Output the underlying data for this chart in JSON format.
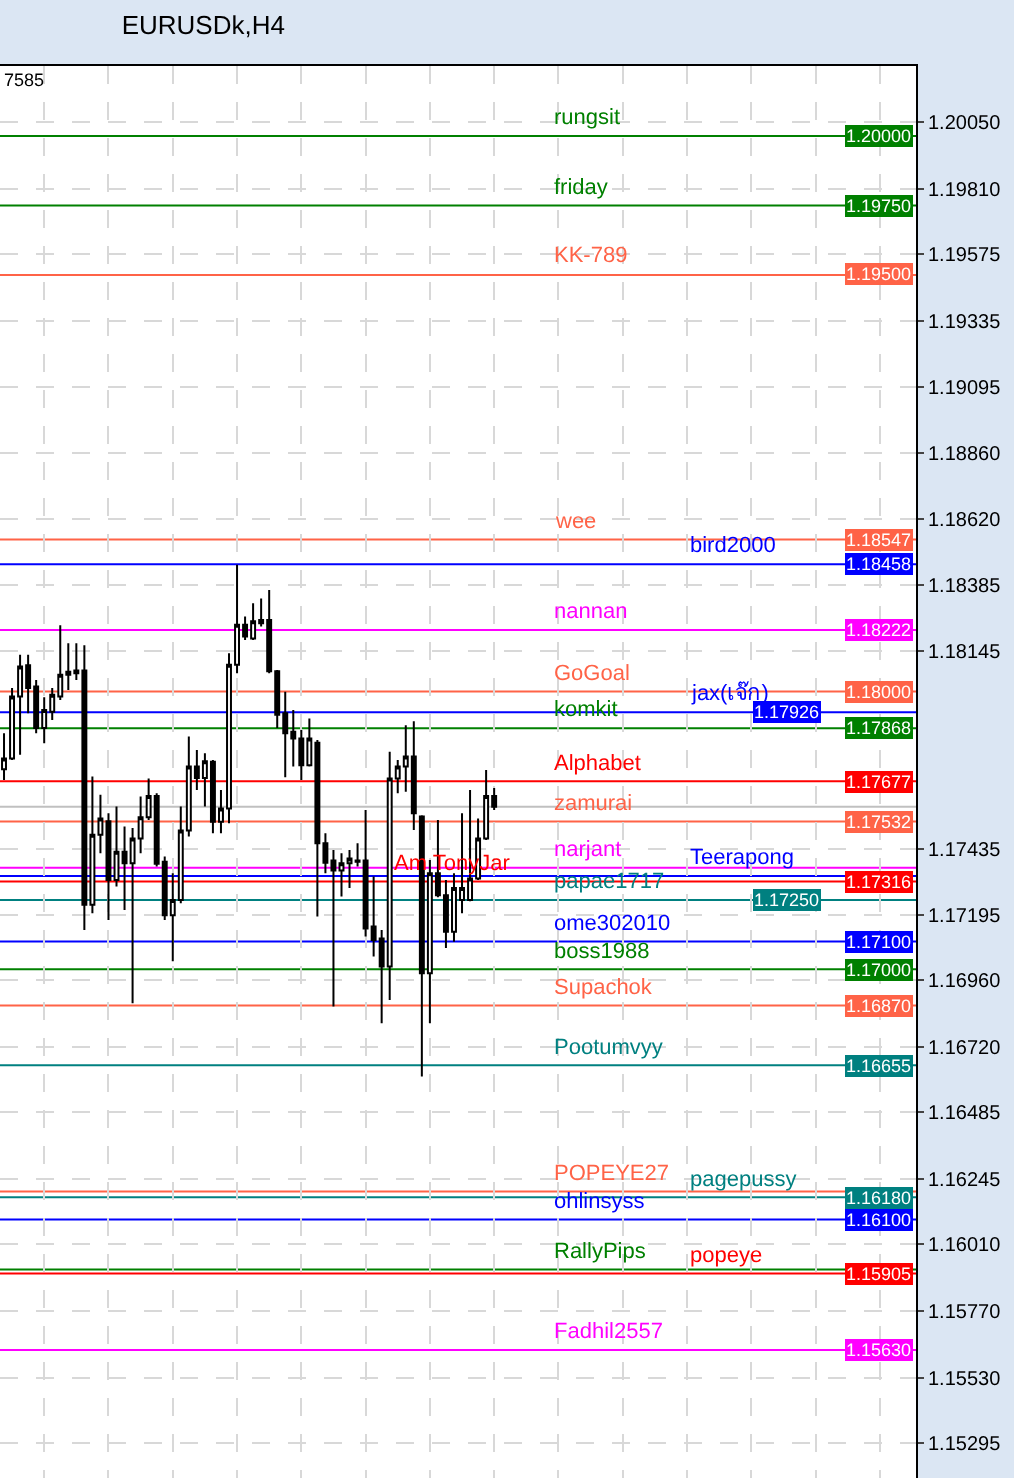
{
  "chart_data": {
    "type": "candlestick",
    "title": "EURUSDk,H4",
    "color": "#000000",
    "categories": [
      null,
      null,
      null,
      null,
      null,
      null,
      null,
      null,
      null,
      null,
      null,
      null,
      null,
      null,
      null,
      null,
      null,
      null,
      null,
      null,
      null,
      null,
      null,
      null,
      null,
      null,
      null,
      null,
      null,
      null,
      null,
      null,
      null,
      null,
      null,
      null,
      null,
      null,
      null,
      null,
      null,
      null,
      null,
      null,
      null,
      null,
      null,
      null,
      null,
      null,
      null,
      null,
      null,
      null,
      null,
      null,
      null,
      null,
      null,
      null,
      null,
      null,
      null,
      null,
      null,
      null,
      null,
      null,
      null,
      null,
      null,
      null,
      null,
      null,
      null,
      null,
      null,
      null,
      null,
      null,
      null,
      null,
      null,
      null,
      null,
      null,
      null,
      null,
      null,
      null,
      null,
      null,
      null,
      null,
      null,
      null,
      null,
      null,
      null,
      null,
      null,
      null,
      null,
      null,
      null,
      null,
      null,
      null,
      null,
      null,
      null,
      null,
      null,
      null
    ],
    "ohlc": [
      [
        1.1772,
        1.1785,
        1.17682,
        1.17759
      ],
      [
        1.17759,
        1.18013,
        1.17754,
        1.17982
      ],
      [
        1.17982,
        1.18133,
        1.17773,
        1.1809
      ],
      [
        1.18095,
        1.18133,
        1.17922,
        1.18013
      ],
      [
        1.18018,
        1.18042,
        1.1785,
        1.17869
      ],
      [
        1.17869,
        1.1798,
        1.17814,
        1.17934
      ],
      [
        1.17927,
        1.18013,
        1.17898,
        1.17989
      ],
      [
        1.17982,
        1.18239,
        1.1797,
        1.18061
      ],
      [
        1.18061,
        1.18174,
        1.18006,
        1.18071
      ],
      [
        1.18066,
        1.18174,
        1.18042,
        1.18076
      ],
      [
        1.18076,
        1.18167,
        1.17142,
        1.17233
      ],
      [
        1.17233,
        1.17694,
        1.17202,
        1.17485
      ],
      [
        1.17485,
        1.17629,
        1.17418,
        1.17543
      ],
      [
        1.17533,
        1.17562,
        1.17178,
        1.17322
      ],
      [
        1.17322,
        1.17586,
        1.17298,
        1.17423
      ],
      [
        1.17423,
        1.17514,
        1.17214,
        1.17382
      ],
      [
        1.17382,
        1.17509,
        1.16878,
        1.17471
      ],
      [
        1.17471,
        1.17622,
        1.17418,
        1.17548
      ],
      [
        1.17548,
        1.17687,
        1.17538,
        1.17624
      ],
      [
        1.17624,
        1.17634,
        1.1737,
        1.1738
      ],
      [
        1.17387,
        1.17406,
        1.17178,
        1.17195
      ],
      [
        1.17195,
        1.17346,
        1.17029,
        1.1725
      ],
      [
        1.1725,
        1.17586,
        1.17238,
        1.175
      ],
      [
        1.175,
        1.17838,
        1.17478,
        1.1773
      ],
      [
        1.1773,
        1.1779,
        1.17646,
        1.17689
      ],
      [
        1.17689,
        1.17778,
        1.17586,
        1.17749
      ],
      [
        1.17747,
        1.17754,
        1.1749,
        1.17531
      ],
      [
        1.17531,
        1.17646,
        1.1749,
        1.17579
      ],
      [
        1.17579,
        1.18138,
        1.17526,
        1.18097
      ],
      [
        1.18097,
        1.18457,
        1.18066,
        1.18241
      ],
      [
        1.18241,
        1.1827,
        1.18186,
        1.18198
      ],
      [
        1.18191,
        1.18318,
        1.18186,
        1.18253
      ],
      [
        1.18246,
        1.18335,
        1.18234,
        1.18258
      ],
      [
        1.18258,
        1.18366,
        1.18066,
        1.18073
      ],
      [
        1.18073,
        1.18078,
        1.17869,
        1.17917
      ],
      [
        1.17922,
        1.17999,
        1.17692,
        1.1785
      ],
      [
        1.17855,
        1.17934,
        1.1773,
        1.17831
      ],
      [
        1.17831,
        1.17862,
        1.17682,
        1.17735
      ],
      [
        1.17735,
        1.17903,
        1.1773,
        1.17831
      ],
      [
        1.17816,
        1.17826,
        1.1719,
        1.17454
      ],
      [
        1.17454,
        1.1749,
        1.17346,
        1.17384
      ],
      [
        1.17392,
        1.1743,
        1.16866,
        1.17356
      ],
      [
        1.17356,
        1.17418,
        1.17262,
        1.17382
      ],
      [
        1.17382,
        1.1743,
        1.17293,
        1.17399
      ],
      [
        1.17392,
        1.17454,
        1.1737,
        1.17387
      ],
      [
        1.17392,
        1.17574,
        1.17118,
        1.17147
      ],
      [
        1.17154,
        1.17334,
        1.17046,
        1.17106
      ],
      [
        1.17111,
        1.17142,
        1.16806,
        1.1701
      ],
      [
        1.1701,
        1.17783,
        1.1689,
        1.17687
      ],
      [
        1.17687,
        1.17754,
        1.17634,
        1.1773
      ],
      [
        1.1773,
        1.17879,
        1.17639,
        1.17766
      ],
      [
        1.17766,
        1.17893,
        1.17502,
        1.17562
      ],
      [
        1.1755,
        1.17555,
        1.16614,
        1.16986
      ],
      [
        1.16986,
        1.17394,
        1.16806,
        1.17346
      ],
      [
        1.17346,
        1.17538,
        1.1726,
        1.17267
      ],
      [
        1.17267,
        1.17322,
        1.17077,
        1.17135
      ],
      [
        1.17135,
        1.17346,
        1.17099,
        1.17293
      ],
      [
        1.1725,
        1.17562,
        1.17202,
        1.17293
      ],
      [
        1.1725,
        1.17646,
        1.17245,
        1.17327
      ],
      [
        1.17327,
        1.17543,
        1.17322,
        1.17471
      ],
      [
        1.17471,
        1.17718,
        1.17466,
        1.17624
      ],
      [
        1.17624,
        1.17653,
        1.17574,
        1.17585
      ],
      null,
      null,
      null,
      null,
      null,
      null,
      null,
      null,
      null,
      null,
      null,
      null,
      null,
      null,
      null,
      null,
      null,
      null,
      null,
      null,
      null,
      null,
      null,
      null,
      null,
      null,
      null,
      null,
      null,
      null,
      null,
      null,
      null,
      null,
      null,
      null,
      null,
      null,
      null,
      null,
      null,
      null,
      null,
      null,
      null,
      null,
      null,
      null,
      null,
      null,
      null,
      null
    ],
    "ylim": [
      1.15169,
      1.20252
    ],
    "yticks": [
      {
        "value": 1.2005,
        "label": "1.20050"
      },
      {
        "value": 1.1981,
        "label": "1.19810"
      },
      1.19575,
      1.19335,
      1.19095,
      {
        "value": 1.1886,
        "label": "1.18860"
      },
      {
        "value": 1.1862,
        "label": "1.18620"
      },
      1.18385,
      1.18145,
      1.17435,
      1.17195,
      {
        "value": 1.1696,
        "label": "1.16960"
      },
      {
        "value": 1.1672,
        "label": "1.16720"
      },
      1.16485,
      1.16245,
      {
        "value": 1.1601,
        "label": "1.16010"
      },
      {
        "value": 1.1577,
        "label": "1.15770"
      },
      {
        "value": 1.1553,
        "label": "1.15530"
      },
      1.15295
    ],
    "grid": true,
    "legend": false,
    "tick_labels": "y",
    "ref_lines": [
      {
        "axis": "y",
        "value": 1.2,
        "label": "rungsit",
        "color": "#008000"
      },
      {
        "axis": "y",
        "value": 1.1975,
        "label": "friday",
        "color": "#008000"
      },
      {
        "axis": "y",
        "value": 1.195,
        "label": "KK-789",
        "color": "#ff6347"
      },
      {
        "axis": "y",
        "value": 1.18547,
        "label": "wee",
        "color": "#ff6347"
      },
      {
        "axis": "y",
        "value": 1.18458,
        "label": "bird2000",
        "color": "#0000ff"
      },
      {
        "axis": "y",
        "value": 1.18222,
        "label": "nannan",
        "color": "#ff00ff"
      },
      {
        "axis": "y",
        "value": 1.18,
        "label": "GoGoal",
        "color": "#ff6347"
      },
      {
        "axis": "y",
        "value": 1.17926,
        "label": "jax(เจ๊ก)",
        "color": "#0000ff"
      },
      {
        "axis": "y",
        "value": 1.17868,
        "label": "komkit",
        "color": "#008000"
      },
      {
        "axis": "y",
        "value": 1.17677,
        "label": "Alphabet",
        "color": "#ff0000"
      },
      {
        "axis": "y",
        "value": 1.17585,
        "label": null,
        "color": "#c0c0c0"
      },
      {
        "axis": "y",
        "value": 1.17532,
        "label": "zamurai",
        "color": "#ff6347"
      },
      {
        "axis": "y",
        "value": 1.17366,
        "label": "narjant",
        "color": "#ff00ff"
      },
      {
        "axis": "y",
        "value": 1.17336,
        "label": "Teerapong",
        "color": "#0000ff"
      },
      {
        "axis": "y",
        "value": 1.17316,
        "label": "Am TonyJar",
        "color": "#ff0000"
      },
      {
        "axis": "y",
        "value": 1.1725,
        "label": "papae1717",
        "color": "#008080"
      },
      {
        "axis": "y",
        "value": 1.171,
        "label": "ome302010",
        "color": "#0000ff"
      },
      {
        "axis": "y",
        "value": 1.17,
        "label": "boss1988",
        "color": "#008000"
      },
      {
        "axis": "y",
        "value": 1.1687,
        "label": "Supachok",
        "color": "#ff6347"
      },
      {
        "axis": "y",
        "value": 1.16655,
        "label": "Pootumvyy",
        "color": "#008080"
      },
      {
        "axis": "y",
        "value": 1.162,
        "label": "POPEYE27",
        "color": "#ff6347"
      },
      {
        "axis": "y",
        "value": 1.1618,
        "label": "pagepussy",
        "color": "#008080"
      },
      {
        "axis": "y",
        "value": 1.161,
        "label": "ohlinsyss",
        "color": "#0000ff"
      },
      {
        "axis": "y",
        "value": 1.1592,
        "label": "RallyPips",
        "color": "#008000"
      },
      {
        "axis": "y",
        "value": 1.15905,
        "label": "popeye",
        "color": "#ff0000"
      },
      {
        "axis": "y",
        "value": 1.1563,
        "label": "Fadhil2557",
        "color": "#ff00ff"
      }
    ],
    "annotations": [
      "7585",
      {
        "text": "1.20000",
        "y": 1.2
      },
      {
        "text": "1.19750",
        "y": 1.1975
      },
      {
        "text": "1.19500",
        "y": 1.195
      },
      {
        "text": "1.18547",
        "y": 1.18547
      },
      {
        "text": "1.18458",
        "y": 1.18458
      },
      {
        "text": "1.18222",
        "y": 1.18222
      },
      {
        "text": "1.18000",
        "y": 1.18
      },
      {
        "text": "1.17926",
        "y": 1.17926
      },
      {
        "text": "1.17868",
        "y": 1.17868
      },
      {
        "text": "1.17677",
        "y": 1.17677
      },
      {
        "text": "1.17532",
        "y": 1.17532
      },
      {
        "text": "1.17316",
        "y": 1.17316
      },
      {
        "text": "1.17250",
        "y": 1.1725
      },
      {
        "text": "1.17100",
        "y": 1.171
      },
      {
        "text": "1.17000",
        "y": 1.17
      },
      {
        "text": "1.16870",
        "y": 1.1687
      },
      {
        "text": "1.16655",
        "y": 1.16655
      },
      {
        "text": "1.16180",
        "y": 1.1618
      },
      {
        "text": "1.16100",
        "y": 1.161
      },
      {
        "text": "1.15905",
        "y": 1.15905
      },
      {
        "text": "1.15630",
        "y": 1.1563
      }
    ]
  }
}
